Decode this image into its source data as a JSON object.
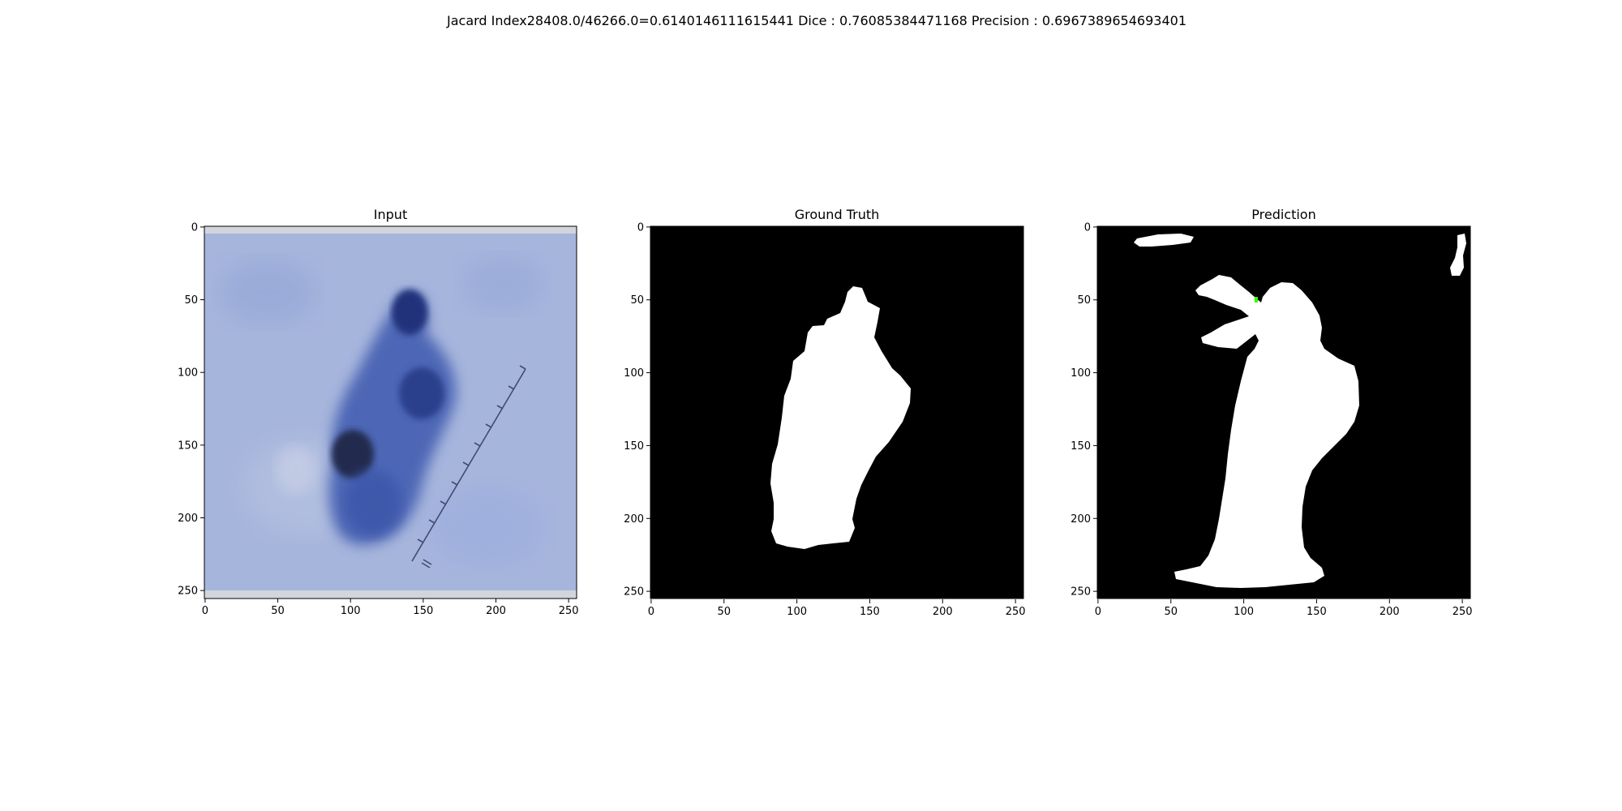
{
  "suptitle": "Jacard Index28408.0/46266.0=0.6140146111615441 Dice : 0.76085384471168 Precision : 0.6967389654693401",
  "panels": [
    {
      "title": "Input",
      "xticks": [
        "0",
        "50",
        "100",
        "150",
        "200",
        "250"
      ],
      "yticks": [
        "0",
        "50",
        "100",
        "150",
        "200",
        "250"
      ]
    },
    {
      "title": "Ground Truth",
      "xticks": [
        "0",
        "50",
        "100",
        "150",
        "200",
        "250"
      ],
      "yticks": [
        "0",
        "50",
        "100",
        "150",
        "200",
        "250"
      ]
    },
    {
      "title": "Prediction",
      "xticks": [
        "0",
        "50",
        "100",
        "150",
        "200",
        "250"
      ],
      "yticks": [
        "0",
        "50",
        "100",
        "150",
        "200",
        "250"
      ]
    }
  ],
  "colors": {
    "background": "#ffffff",
    "mask_background": "#000000",
    "mask_foreground": "#ffffff",
    "skin": "#a4b4dc",
    "lesion": "#3f5aa8",
    "lesion_dark": "#1b2450",
    "highlight": "#33ff00"
  }
}
